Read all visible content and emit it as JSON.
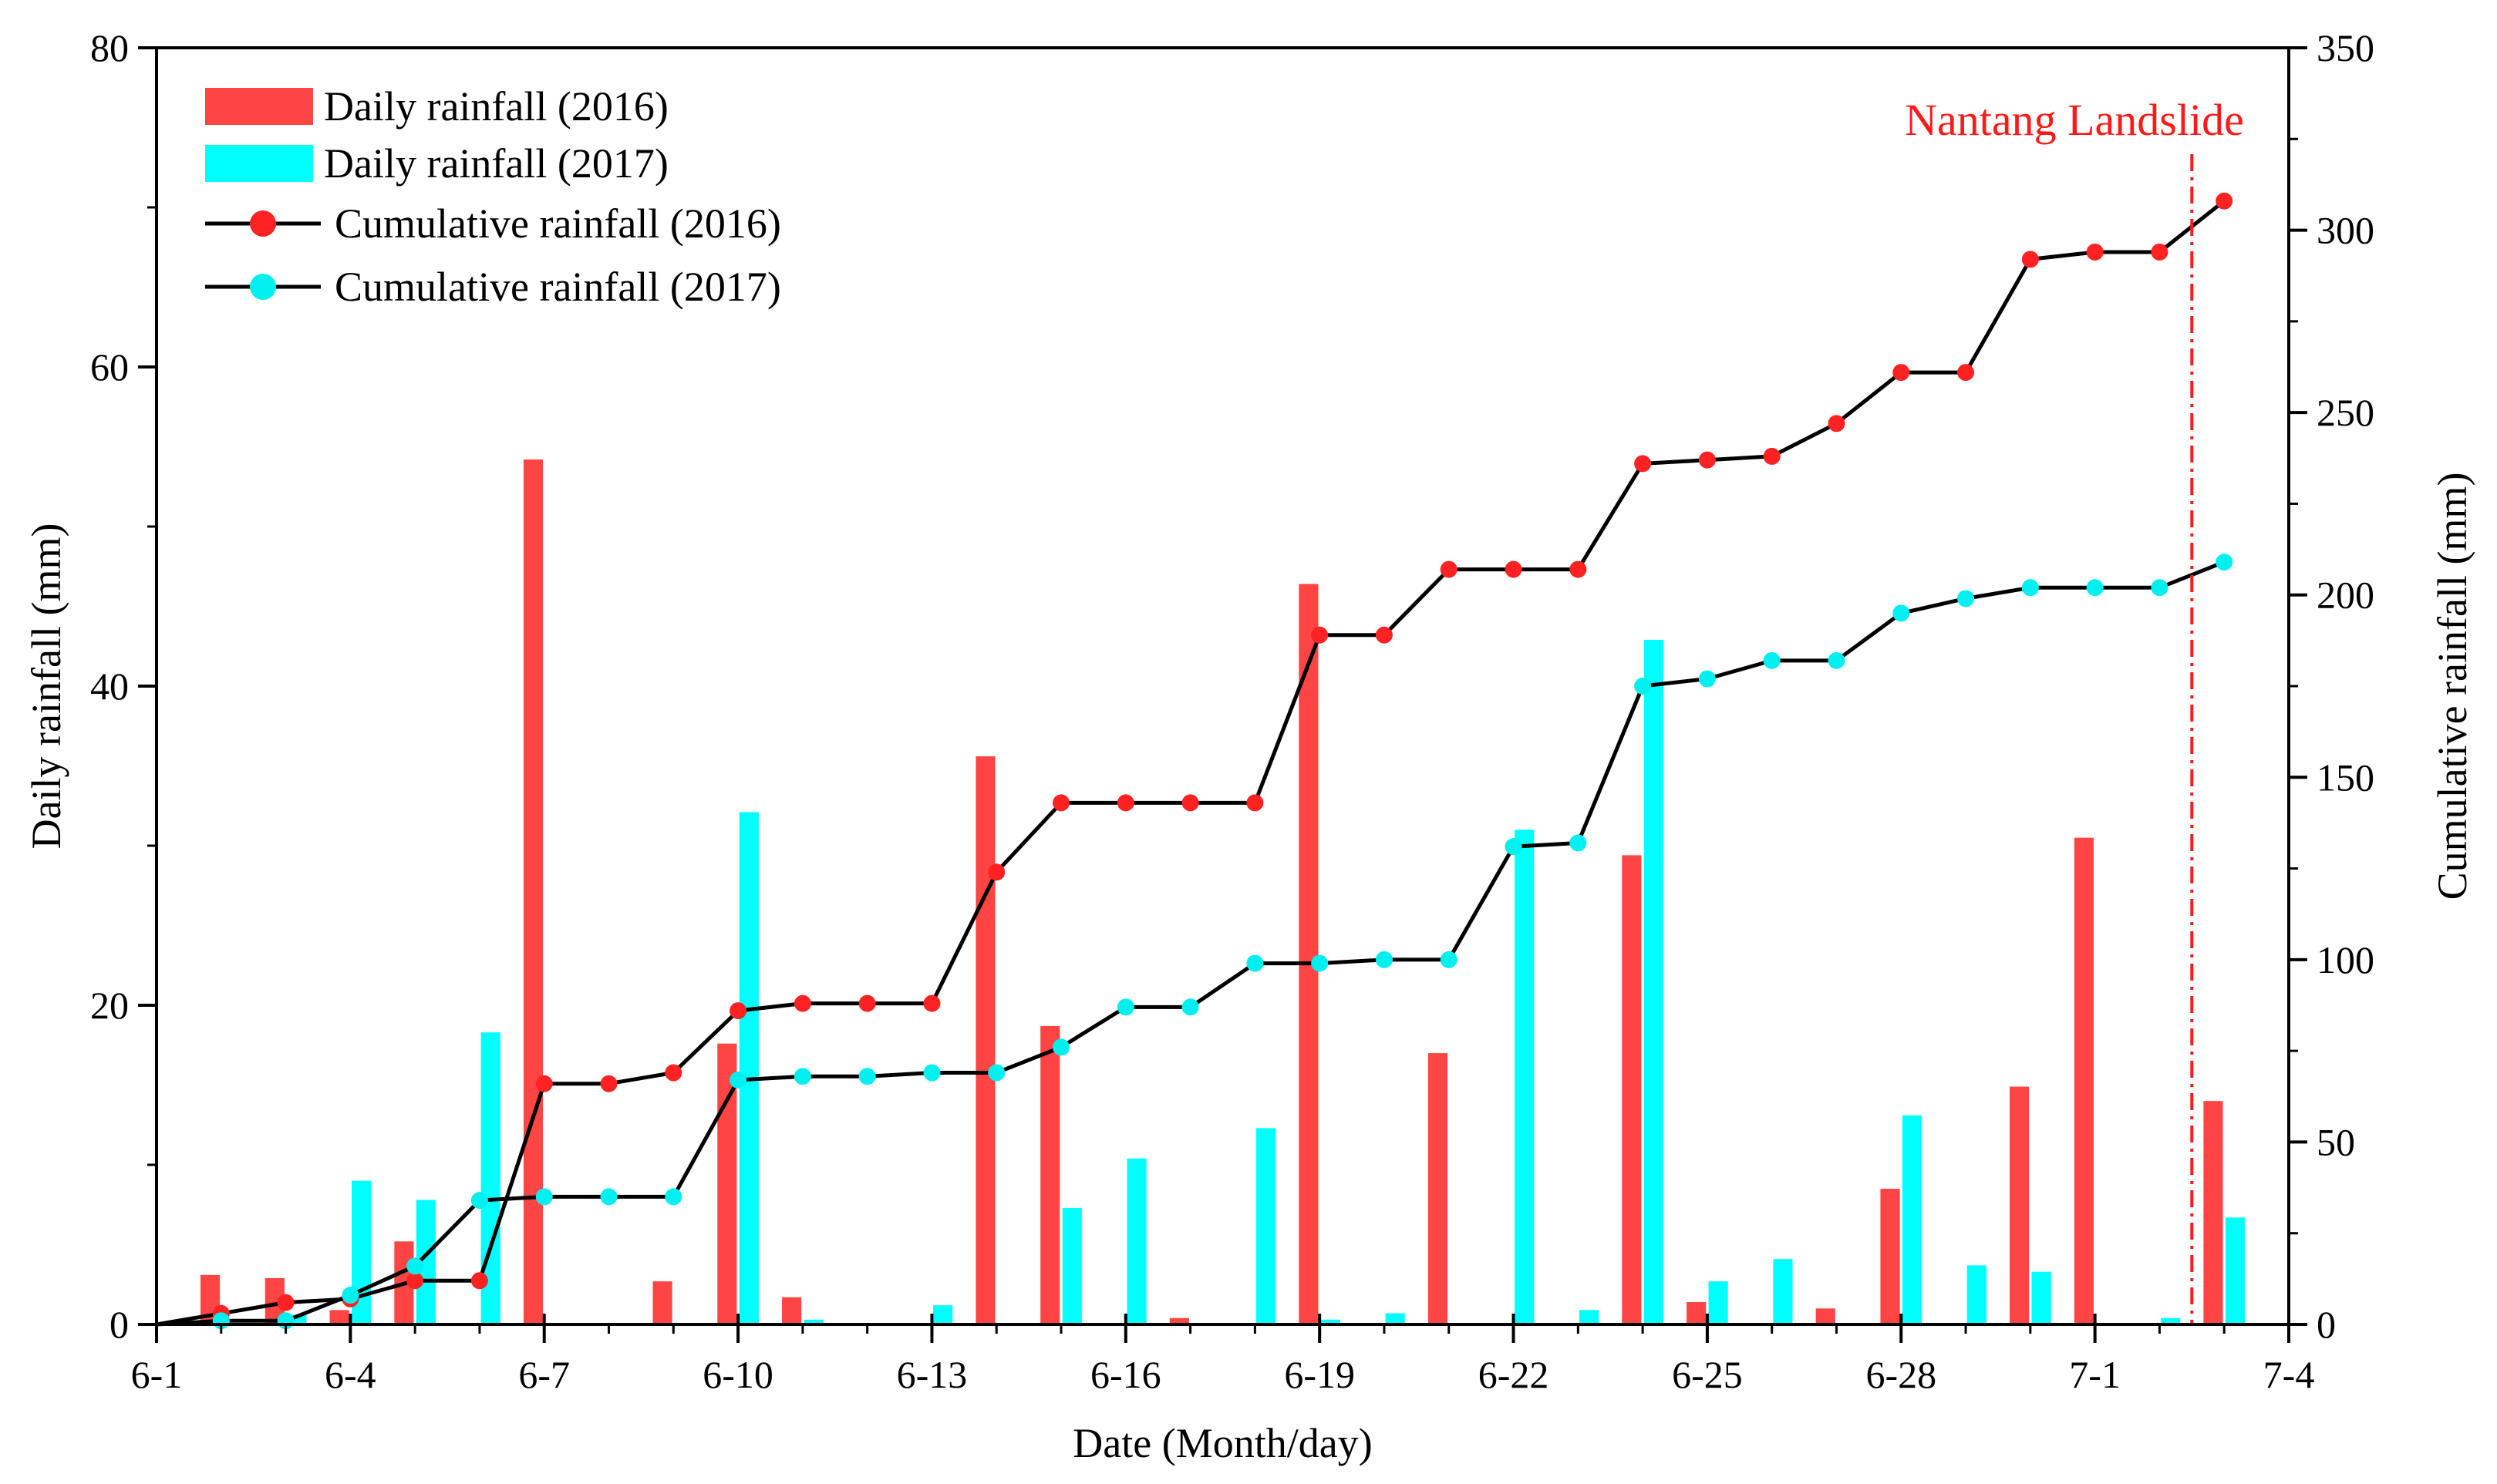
{
  "chart_data": {
    "type": "bar+line",
    "xlabel": "Date (Month/day)",
    "ylabel_left": "Daily rainfall (mm)",
    "ylabel_right": "Cumulative rainfall (mm)",
    "ylim_left": [
      0,
      80
    ],
    "ylim_right": [
      0,
      350
    ],
    "xlim": [
      0,
      33
    ],
    "x_ticks": [
      {
        "x": 0,
        "label": "6-1"
      },
      {
        "x": 3,
        "label": "6-4"
      },
      {
        "x": 6,
        "label": "6-7"
      },
      {
        "x": 9,
        "label": "6-10"
      },
      {
        "x": 12,
        "label": "6-13"
      },
      {
        "x": 15,
        "label": "6-16"
      },
      {
        "x": 18,
        "label": "6-19"
      },
      {
        "x": 21,
        "label": "6-22"
      },
      {
        "x": 24,
        "label": "6-25"
      },
      {
        "x": 27,
        "label": "6-28"
      },
      {
        "x": 30,
        "label": "7-1"
      },
      {
        "x": 33,
        "label": "7-4"
      }
    ],
    "y_left_ticks": [
      0,
      20,
      40,
      60,
      80
    ],
    "y_right_ticks": [
      0,
      50,
      100,
      150,
      200,
      250,
      300,
      350
    ],
    "x_minor_ticks": [
      1,
      2,
      4,
      5,
      7,
      8,
      10,
      11,
      13,
      14,
      16,
      17,
      19,
      20,
      22,
      23,
      25,
      26,
      28,
      29,
      31,
      32
    ],
    "legend": [
      {
        "label": "Daily rainfall (2016)",
        "kind": "bar",
        "color": "#ff4444"
      },
      {
        "label": "Daily rainfall (2017)",
        "kind": "bar",
        "color": "#00ffff"
      },
      {
        "label": "Cumulative rainfall (2016)",
        "kind": "line",
        "color": "#ff2222"
      },
      {
        "label": "Cumulative rainfall (2017)",
        "kind": "line",
        "color": "#00f0f0"
      }
    ],
    "annotation": {
      "label": "Nantang Landslide",
      "x": 31.5,
      "color": "#ff1a1a"
    },
    "colors": {
      "bar2016": "#ff4444",
      "bar2017": "#00ffff",
      "line": "#000000",
      "marker2016": "#ff2222",
      "marker2017": "#00f0f0"
    },
    "series": [
      {
        "name": "Daily rainfall (2016)",
        "type": "bar",
        "axis": "left",
        "x": [
          1,
          2,
          3,
          4,
          6,
          8,
          9,
          10,
          13,
          14,
          16,
          18,
          20,
          23,
          24,
          26,
          27,
          29,
          30,
          32
        ],
        "values": [
          3.1,
          2.9,
          0.9,
          5.2,
          54.2,
          2.7,
          17.6,
          1.7,
          35.6,
          18.7,
          0.4,
          46.4,
          17.0,
          29.4,
          1.4,
          1.0,
          8.5,
          14.9,
          30.5,
          14.0
        ]
      },
      {
        "name": "Daily rainfall (2017)",
        "type": "bar",
        "axis": "left",
        "x": [
          2,
          3,
          4,
          5,
          9,
          10,
          12,
          14,
          15,
          17,
          18,
          19,
          21,
          22,
          23,
          24,
          25,
          27,
          28,
          29,
          31,
          32
        ],
        "values": [
          0.6,
          9.0,
          7.8,
          18.3,
          32.1,
          0.3,
          1.2,
          7.3,
          10.4,
          12.3,
          0.3,
          0.7,
          31.0,
          0.9,
          42.9,
          2.7,
          4.1,
          13.1,
          3.7,
          3.3,
          0.4,
          6.7
        ]
      },
      {
        "name": "Cumulative rainfall (2016)",
        "type": "line",
        "axis": "right",
        "x": [
          0,
          1,
          2,
          3,
          4,
          5,
          6,
          7,
          8,
          9,
          10,
          11,
          12,
          13,
          14,
          15,
          16,
          17,
          18,
          19,
          20,
          21,
          22,
          23,
          24,
          25,
          26,
          27,
          28,
          29,
          30,
          31,
          32
        ],
        "values": [
          0,
          3,
          6,
          7,
          12,
          12,
          66,
          66,
          69,
          86,
          88,
          88,
          88,
          124,
          143,
          143,
          143,
          143,
          189,
          189,
          207,
          207,
          207,
          236,
          237,
          238,
          247,
          261,
          261,
          292,
          294,
          294,
          308
        ]
      },
      {
        "name": "Cumulative rainfall (2017)",
        "type": "line",
        "axis": "right",
        "x": [
          0,
          1,
          2,
          3,
          4,
          5,
          6,
          7,
          8,
          9,
          10,
          11,
          12,
          13,
          14,
          15,
          16,
          17,
          18,
          19,
          20,
          21,
          22,
          23,
          24,
          25,
          26,
          27,
          28,
          29,
          30,
          31,
          32
        ],
        "values": [
          0,
          1,
          1,
          8,
          16,
          34,
          35,
          35,
          35,
          67,
          68,
          68,
          69,
          69,
          76,
          87,
          87,
          99,
          99,
          100,
          100,
          131,
          132,
          175,
          177,
          182,
          182,
          195,
          199,
          202,
          202,
          202,
          209
        ]
      }
    ]
  }
}
